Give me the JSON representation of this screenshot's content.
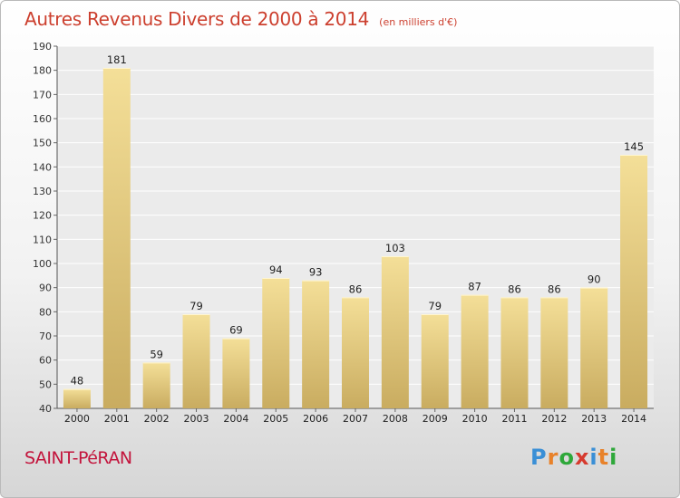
{
  "title": "Autres Revenus Divers de 2000 à 2014",
  "unit_note": "(en milliers d'€)",
  "city": "SAINT-PéRAN",
  "logo": {
    "text": "Proxiti",
    "colors": [
      "#3a8fd6",
      "#e8822a",
      "#2ea83a",
      "#d63a2e",
      "#3a8fd6",
      "#e8822a",
      "#2ea83a"
    ]
  },
  "colors": {
    "title": "#cc3f2e",
    "city": "#c3143c",
    "bar_light": "#f4df98",
    "bar_dark": "#c9ac60"
  },
  "chart_data": {
    "type": "bar",
    "title": "Autres Revenus Divers de 2000 à 2014",
    "categories": [
      "2000",
      "2001",
      "2002",
      "2003",
      "2004",
      "2005",
      "2006",
      "2007",
      "2008",
      "2009",
      "2010",
      "2011",
      "2012",
      "2013",
      "2014"
    ],
    "values": [
      48,
      181,
      59,
      79,
      69,
      94,
      93,
      86,
      103,
      79,
      87,
      86,
      86,
      90,
      145
    ],
    "ylim": [
      40,
      190
    ],
    "yticks": [
      40,
      50,
      60,
      70,
      80,
      90,
      100,
      110,
      120,
      130,
      140,
      150,
      160,
      170,
      180,
      190
    ],
    "grid": true,
    "xlabel": "",
    "ylabel": ""
  }
}
